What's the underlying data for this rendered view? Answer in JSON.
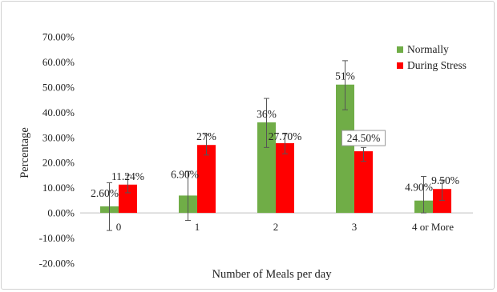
{
  "chart_data": {
    "type": "bar",
    "title": "",
    "xlabel": "Number of Meals per day",
    "ylabel": "Percentage",
    "categories": [
      "0",
      "1",
      "2",
      "3",
      "4 or More"
    ],
    "ylim": [
      -20,
      70
    ],
    "yticks": [
      70,
      60,
      50,
      40,
      30,
      20,
      10,
      0,
      -10,
      -20
    ],
    "ytick_labels": [
      "70.00%",
      "60.00%",
      "50.00%",
      "40.00%",
      "30.00%",
      "20.00%",
      "10.00%",
      "0.00%",
      "-10.00%",
      "-20.00%"
    ],
    "grid": false,
    "legend_position": "top-right",
    "series": [
      {
        "name": "Normally",
        "color": "#70AD47",
        "values": [
          2.6,
          6.9,
          36,
          51,
          4.9
        ],
        "labels": [
          "2.60%",
          "6.90%",
          "36%",
          "51%",
          "4.90%"
        ],
        "error_low": [
          -7,
          -3,
          26,
          41,
          0
        ],
        "error_high": [
          12,
          16.5,
          45.5,
          60.5,
          14.5
        ]
      },
      {
        "name": "During Stress",
        "color": "#FF0000",
        "values": [
          11.24,
          27,
          27.7,
          24.5,
          9.5
        ],
        "labels": [
          "11.24%",
          "27%",
          "27.70%",
          "24.50%",
          "9.50%"
        ],
        "error_low": [
          8,
          23,
          23.5,
          20.5,
          5
        ],
        "error_high": [
          15,
          31,
          31.5,
          26,
          13
        ]
      }
    ]
  }
}
